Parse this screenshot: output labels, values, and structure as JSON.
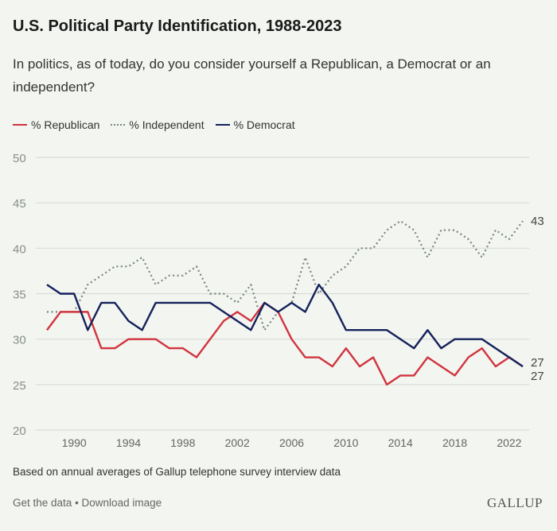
{
  "chart_data": {
    "type": "line",
    "title": "U.S. Political Party Identification, 1988-2023",
    "subtitle": "In politics, as of today, do you consider yourself a Republican, a Democrat or an independent?",
    "x": [
      1988,
      1989,
      1990,
      1991,
      1992,
      1993,
      1994,
      1995,
      1996,
      1997,
      1998,
      1999,
      2000,
      2001,
      2002,
      2003,
      2004,
      2005,
      2006,
      2007,
      2008,
      2009,
      2010,
      2011,
      2012,
      2013,
      2014,
      2015,
      2016,
      2017,
      2018,
      2019,
      2020,
      2021,
      2022,
      2023
    ],
    "series": [
      {
        "name": "% Republican",
        "color": "#d1343f",
        "style": "solid",
        "values": [
          31,
          33,
          33,
          33,
          29,
          29,
          30,
          30,
          30,
          29,
          29,
          28,
          30,
          32,
          33,
          32,
          34,
          33,
          30,
          28,
          28,
          27,
          29,
          27,
          28,
          25,
          26,
          26,
          28,
          27,
          26,
          28,
          29,
          27,
          28,
          27
        ],
        "end_label": "27"
      },
      {
        "name": "% Independent",
        "color": "#7b8580",
        "style": "dotted",
        "values": [
          33,
          33,
          33,
          36,
          37,
          38,
          38,
          39,
          36,
          37,
          37,
          38,
          35,
          35,
          34,
          36,
          31,
          33,
          34,
          39,
          35,
          37,
          38,
          40,
          40,
          42,
          43,
          42,
          39,
          42,
          42,
          41,
          39,
          42,
          41,
          43
        ],
        "end_label": "43"
      },
      {
        "name": "% Democrat",
        "color": "#14215a",
        "style": "solid",
        "values": [
          36,
          35,
          35,
          31,
          34,
          34,
          32,
          31,
          34,
          34,
          34,
          34,
          34,
          33,
          32,
          31,
          34,
          33,
          34,
          33,
          36,
          34,
          31,
          31,
          31,
          31,
          30,
          29,
          31,
          29,
          30,
          30,
          30,
          29,
          28,
          27
        ],
        "end_label": "27"
      }
    ],
    "xticks": [
      "1990",
      "1994",
      "1998",
      "2002",
      "2006",
      "2010",
      "2014",
      "2018",
      "2022"
    ],
    "yticks": [
      "20",
      "25",
      "30",
      "35",
      "40",
      "45",
      "50"
    ],
    "ylim": [
      20,
      50
    ],
    "xlabel": "",
    "ylabel": "",
    "grid": true,
    "legend": "top-left"
  },
  "footer": {
    "note": "Based on annual averages of Gallup telephone survey interview data",
    "get_data": "Get the data",
    "separator": " • ",
    "download": "Download image",
    "logo": "GALLUP"
  }
}
